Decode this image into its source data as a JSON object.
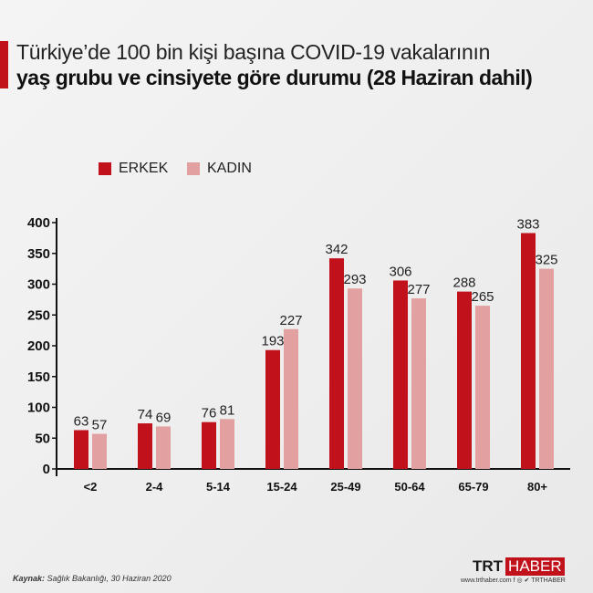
{
  "title_line1": "Türkiye’de 100 bin kişi başına COVID-19 vakalarının",
  "title_line2": "yaş grubu ve cinsiyete göre durumu (28 Haziran dahil)",
  "source_label": "Kaynak:",
  "source_text": " Sağlık Bakanlığı, 30 Haziran 2020",
  "logo": {
    "trt": "TRT",
    "haber": "HABER"
  },
  "website": "www.trthaber.com  f  ◎  ✔ TRTHABER",
  "colors": {
    "erkek": "#c1121c",
    "kadin": "#e3a0a0"
  },
  "chart_data": {
    "type": "bar",
    "categories": [
      "<2",
      "2-4",
      "5-14",
      "15-24",
      "25-49",
      "50-64",
      "65-79",
      "80+"
    ],
    "series": [
      {
        "name": "ERKEK",
        "values": [
          63,
          74,
          76,
          193,
          342,
          306,
          288,
          383
        ]
      },
      {
        "name": "KADIN",
        "values": [
          57,
          69,
          81,
          227,
          293,
          277,
          265,
          325
        ]
      }
    ],
    "yticks": [
      0,
      50,
      100,
      150,
      200,
      250,
      300,
      350,
      400
    ],
    "ylim": [
      0,
      400
    ],
    "grid": false,
    "legend": "top-left"
  }
}
